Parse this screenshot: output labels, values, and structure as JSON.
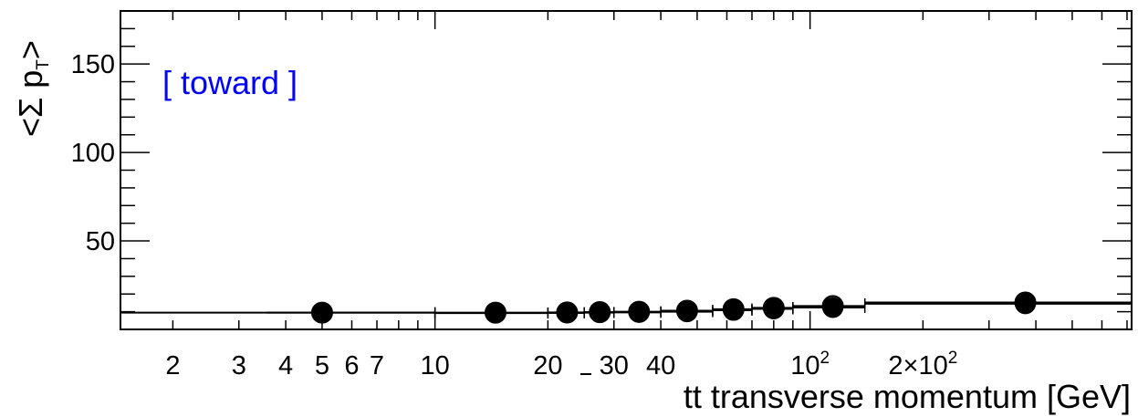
{
  "chart_data": {
    "type": "scatter",
    "title": "",
    "annotation": "[ toward ]",
    "annotation_color": "#0000ff",
    "xlabel": {
      "prefix": "tt",
      "overline": "t",
      "rest": " transverse momentum [GeV]"
    },
    "ylabel": {
      "lhs": "<Σ p",
      "sub": "T",
      "rhs": ">"
    },
    "x_scale": "log",
    "xlim": [
      1.45,
      720
    ],
    "ylim": [
      0,
      180
    ],
    "grid": false,
    "legend": "none",
    "x_major_ticks": [
      {
        "value": 2,
        "label": "2"
      },
      {
        "value": 3,
        "label": "3"
      },
      {
        "value": 4,
        "label": "4"
      },
      {
        "value": 5,
        "label": "5"
      },
      {
        "value": 6,
        "label": "6"
      },
      {
        "value": 7,
        "label": "7"
      },
      {
        "value": 10,
        "label": "10"
      },
      {
        "value": 20,
        "label": "20"
      },
      {
        "value": 30,
        "label": "30"
      },
      {
        "value": 40,
        "label": "40"
      },
      {
        "value": 100,
        "label": "10",
        "exp": "2"
      },
      {
        "value": 200,
        "label": "2×10",
        "exp": "2"
      }
    ],
    "y_major_ticks": [
      {
        "value": 50,
        "label": "50"
      },
      {
        "value": 100,
        "label": "100"
      },
      {
        "value": 150,
        "label": "150"
      }
    ],
    "y_minor_step": 10,
    "series": [
      {
        "style": "open-circle",
        "x": [
          5.0,
          14.5,
          22.5,
          27.5,
          35.0,
          47.0,
          62.5,
          80.0,
          115,
          375
        ],
        "xerr": [
          [
            3.55,
            10
          ],
          [
            10,
            20
          ],
          [
            20,
            25
          ],
          [
            25,
            30
          ],
          [
            30,
            40
          ],
          [
            40,
            55
          ],
          [
            55,
            70
          ],
          [
            70,
            90
          ],
          [
            90,
            140
          ],
          [
            140,
            720
          ]
        ],
        "y": [
          9.5,
          9.5,
          9.6,
          9.8,
          10.0,
          10.6,
          11.4,
          12.2,
          13.2,
          15.2
        ]
      },
      {
        "style": "filled-circle",
        "x": [
          5.0,
          14.5,
          22.5,
          27.5,
          35.0,
          47.0,
          62.5,
          80.0,
          115,
          375
        ],
        "xerr": [
          [
            1.45,
            10
          ],
          [
            10,
            20
          ],
          [
            20,
            25
          ],
          [
            25,
            30
          ],
          [
            30,
            40
          ],
          [
            40,
            55
          ],
          [
            55,
            70
          ],
          [
            70,
            90
          ],
          [
            90,
            140
          ],
          [
            140,
            720
          ]
        ],
        "y": [
          9.5,
          9.2,
          9.3,
          9.5,
          9.6,
          10.0,
          10.8,
          11.6,
          12.4,
          14.5
        ]
      }
    ]
  }
}
